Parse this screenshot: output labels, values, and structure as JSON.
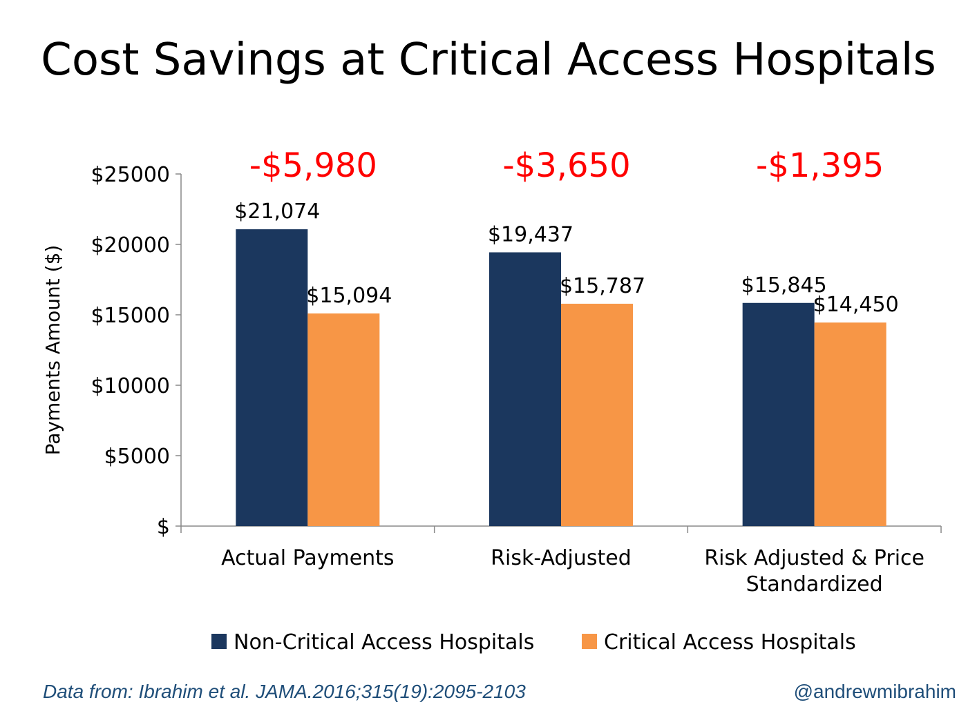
{
  "page": {
    "title": "Cost Savings at Critical Access Hospitals"
  },
  "chart_data": {
    "type": "bar",
    "categories": [
      [
        "Actual Payments"
      ],
      [
        "Risk-Adjusted"
      ],
      [
        "Risk Adjusted & Price",
        "Standardized"
      ]
    ],
    "series": [
      {
        "name": "Non-Critical Access Hospitals",
        "color": "#1B375E",
        "values": [
          21074,
          19437,
          15845
        ],
        "labels": [
          "$21,074",
          "$19,437",
          "$15,845"
        ]
      },
      {
        "name": "Critical Access Hospitals",
        "color": "#F79646",
        "values": [
          15094,
          15787,
          14450
        ],
        "labels": [
          "$15,094",
          "$15,787",
          "$14,450"
        ]
      }
    ],
    "differences": [
      "-$5,980",
      "-$3,650",
      "-$1,395"
    ],
    "difference_color": "#FF0000",
    "ylabel": "Payments Amount ($)",
    "ylim": [
      0,
      25000
    ],
    "yticks": [
      0,
      5000,
      10000,
      15000,
      20000,
      25000
    ],
    "ytick_labels": [
      "$",
      "$5000",
      "$10000",
      "$15000",
      "$20000",
      "$25000"
    ],
    "grid": false,
    "legend_position": "bottom"
  },
  "footer": {
    "source": "Data from: Ibrahim et al. JAMA.2016;315(19):2095-2103",
    "handle": "@andrewmibrahim"
  }
}
